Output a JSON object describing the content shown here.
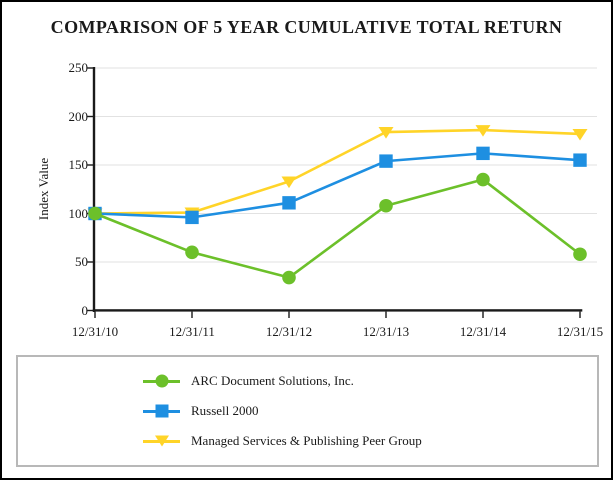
{
  "chart_data": {
    "type": "line",
    "title": "COMPARISON OF 5 YEAR CUMULATIVE TOTAL RETURN",
    "xlabel": "",
    "ylabel": "Index Value",
    "x_categories": [
      "12/31/10",
      "12/31/11",
      "12/31/12",
      "12/31/13",
      "12/31/14",
      "12/31/15"
    ],
    "y_ticks": [
      "0",
      "50",
      "100",
      "150",
      "200",
      "250"
    ],
    "ylim": [
      0,
      250
    ],
    "grid": "horizontal",
    "legend_position": "bottom-box",
    "series": [
      {
        "name": "ARC Document Solutions, Inc.",
        "marker": "circle",
        "color": "#6cc02a",
        "values": [
          100,
          60,
          34,
          108,
          135,
          58
        ]
      },
      {
        "name": "Russell 2000",
        "marker": "square",
        "color": "#1e8fe1",
        "values": [
          100,
          96,
          111,
          154,
          162,
          155
        ]
      },
      {
        "name": "Managed Services & Publishing Peer Group",
        "marker": "triangle-down",
        "color": "#ffd428",
        "values": [
          100,
          101,
          133,
          184,
          186,
          182
        ]
      }
    ]
  },
  "colors": {
    "grid": "#e2e2e2",
    "axis": "#1a1a1a",
    "text": "#1a1a1a",
    "legend_border": "#b8b8b8",
    "page_border": "#000000"
  }
}
